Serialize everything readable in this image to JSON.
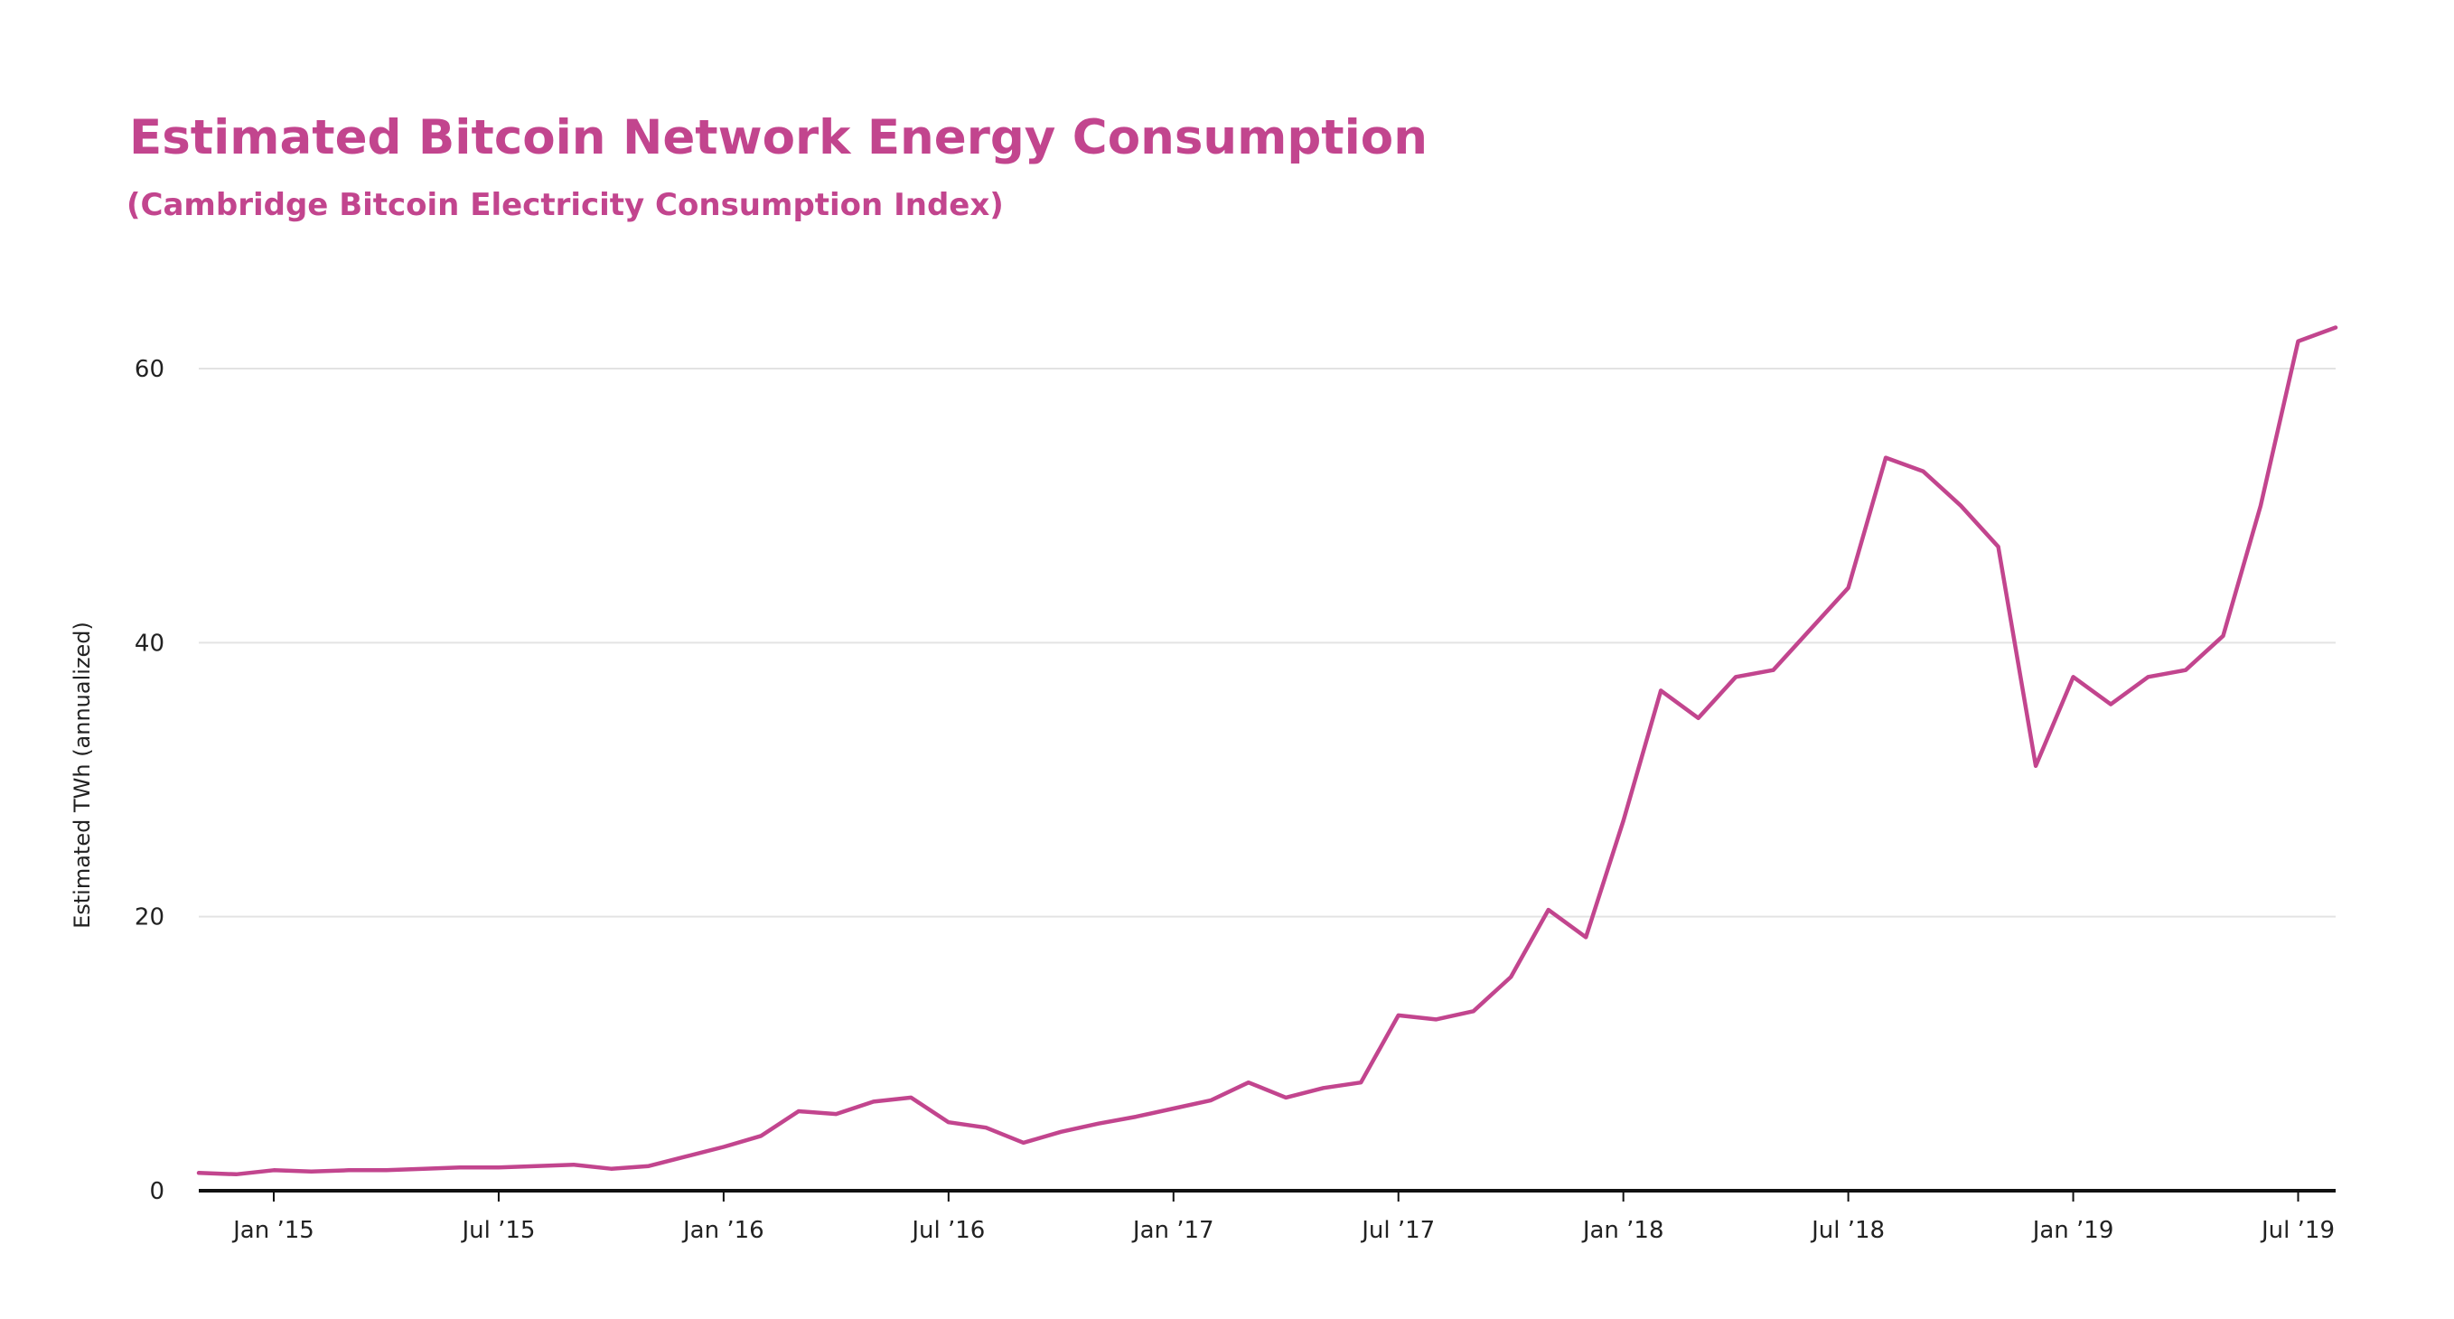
{
  "chart_data": {
    "type": "line",
    "title": "Estimated Bitcoin Network Energy Consumption",
    "subtitle": "(Cambridge Bitcoin Electricity Consumption Index)",
    "xlabel": "",
    "ylabel": "Estimated TWh (annualized)",
    "ylim": [
      0,
      60
    ],
    "yticks": [
      0,
      20,
      40,
      60
    ],
    "x_tick_labels": [
      "Jan ’15",
      "Jul ’15",
      "Jan ’16",
      "Jul ’16",
      "Jan ’17",
      "Jul ’17",
      "Jan ’18",
      "Jul ’18",
      "Jan ’19",
      "Jul ’19"
    ],
    "x_range": [
      "2014-11",
      "2019-08"
    ],
    "grid": "horizontal",
    "legend": "none",
    "color": "#c2458e",
    "series": [
      {
        "x": [
          "2014-11",
          "2014-12",
          "2015-01",
          "2015-02",
          "2015-03",
          "2015-04",
          "2015-05",
          "2015-06",
          "2015-07",
          "2015-08",
          "2015-09",
          "2015-10",
          "2015-11",
          "2015-12",
          "2016-01",
          "2016-02",
          "2016-03",
          "2016-04",
          "2016-05",
          "2016-06",
          "2016-07",
          "2016-08",
          "2016-09",
          "2016-10",
          "2016-11",
          "2016-12",
          "2017-01",
          "2017-02",
          "2017-03",
          "2017-04",
          "2017-05",
          "2017-06",
          "2017-07",
          "2017-08",
          "2017-09",
          "2017-10",
          "2017-11",
          "2017-12",
          "2018-01",
          "2018-02",
          "2018-03",
          "2018-04",
          "2018-05",
          "2018-06",
          "2018-07",
          "2018-08",
          "2018-09",
          "2018-10",
          "2018-11",
          "2018-12",
          "2019-01",
          "2019-02",
          "2019-03",
          "2019-04",
          "2019-05",
          "2019-06",
          "2019-07",
          "2019-08"
        ],
        "values": [
          1.3,
          1.2,
          1.5,
          1.4,
          1.5,
          1.5,
          1.6,
          1.7,
          1.7,
          1.8,
          1.9,
          1.6,
          1.8,
          2.5,
          3.2,
          4.0,
          5.8,
          5.6,
          6.5,
          6.8,
          5.0,
          4.6,
          3.5,
          4.3,
          4.9,
          5.4,
          6.0,
          6.6,
          7.9,
          6.8,
          7.5,
          7.9,
          12.8,
          12.5,
          13.1,
          15.6,
          20.5,
          18.5,
          27.0,
          36.5,
          34.5,
          37.5,
          38.0,
          41.0,
          44.0,
          53.5,
          52.5,
          50.0,
          47.0,
          31.0,
          37.5,
          35.5,
          37.5,
          38.0,
          40.5,
          50.0,
          62.0,
          63.0
        ]
      }
    ]
  }
}
